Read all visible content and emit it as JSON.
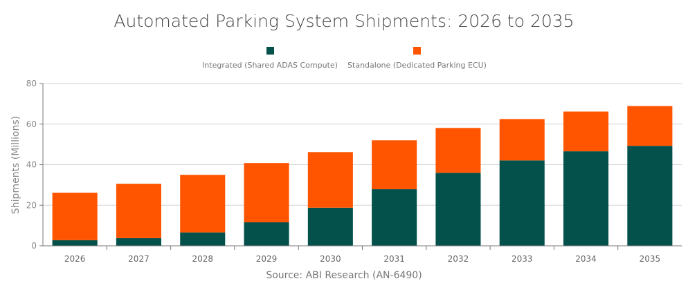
{
  "chart_data": {
    "type": "bar",
    "stacked": true,
    "title": "Automated Parking System Shipments: 2026 to 2035",
    "xlabel": "",
    "ylabel": "Shipments (Millions)",
    "ylim": [
      0,
      80
    ],
    "yticks": [
      0,
      20,
      40,
      60,
      80
    ],
    "grid": true,
    "legend_position": "top",
    "categories": [
      "2026",
      "2027",
      "2028",
      "2029",
      "2030",
      "2031",
      "2032",
      "2033",
      "2034",
      "2035"
    ],
    "series": [
      {
        "name": "Integrated (Shared ADAS Compute)",
        "color": "#04514c",
        "values": [
          2.8,
          3.8,
          6.6,
          11.6,
          18.8,
          27.9,
          36.0,
          42.1,
          46.6,
          49.3
        ]
      },
      {
        "name": "Standalone (Dedicated Parking ECU)",
        "color": "#ff5500",
        "values": [
          23.4,
          26.8,
          28.4,
          29.2,
          27.4,
          24.1,
          22.1,
          20.4,
          19.6,
          19.6
        ]
      }
    ],
    "source": "Source: ABI Research (AN-6490)"
  }
}
